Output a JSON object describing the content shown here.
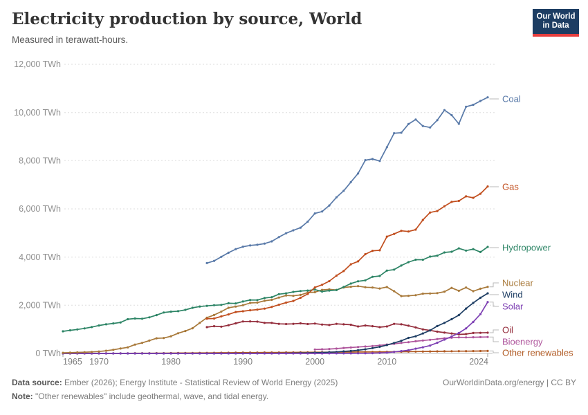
{
  "header": {
    "title": "Electricity production by source, World",
    "subtitle": "Measured in terawatt-hours.",
    "logo": {
      "line1": "Our World",
      "line2": "in Data"
    }
  },
  "footer": {
    "source_label": "Data source:",
    "source_text": "Ember (2026); Energy Institute - Statistical Review of World Energy (2025)",
    "note_label": "Note:",
    "note_text": "\"Other renewables\" include geothermal, wave, and tidal energy.",
    "attribution": "OurWorldinData.org/energy | CC BY"
  },
  "chart_data": {
    "type": "line",
    "title": "Electricity production by source, World",
    "subtitle": "Measured in terawatt-hours.",
    "unit": "TWh",
    "xlabel": "",
    "ylabel": "",
    "grid": true,
    "legend_position": "right-end-of-line",
    "x_range": [
      1965,
      2024
    ],
    "ylim": [
      0,
      12000
    ],
    "y_ticks": [
      0,
      2000,
      4000,
      6000,
      8000,
      10000,
      12000
    ],
    "y_tick_labels": [
      "0 TWh",
      "2,000 TWh",
      "4,000 TWh",
      "6,000 TWh",
      "8,000 TWh",
      "10,000 TWh",
      "12,000 TWh"
    ],
    "x_tick_years": [
      1965,
      1970,
      1980,
      1990,
      2000,
      2010,
      2024
    ],
    "x_tick_labels": [
      "1965",
      "1970",
      "1980",
      "1990",
      "2000",
      "2010",
      "2024"
    ],
    "series": [
      {
        "name": "Coal",
        "color": "#5879A8",
        "start_year": 1985,
        "values": [
          3750,
          3840,
          4010,
          4180,
          4330,
          4430,
          4480,
          4510,
          4560,
          4650,
          4830,
          4990,
          5110,
          5220,
          5470,
          5810,
          5890,
          6140,
          6480,
          6750,
          7110,
          7470,
          8020,
          8070,
          7990,
          8560,
          9140,
          9160,
          9520,
          9710,
          9440,
          9380,
          9680,
          10100,
          9890,
          9530,
          10240,
          10320,
          10480,
          10630
        ]
      },
      {
        "name": "Gas",
        "color": "#C14E1E",
        "start_year": 1985,
        "values": [
          1440,
          1450,
          1540,
          1620,
          1720,
          1750,
          1790,
          1820,
          1860,
          1930,
          2020,
          2110,
          2180,
          2310,
          2470,
          2740,
          2850,
          3000,
          3230,
          3420,
          3700,
          3820,
          4120,
          4260,
          4280,
          4850,
          4960,
          5090,
          5060,
          5140,
          5540,
          5850,
          5910,
          6110,
          6290,
          6330,
          6520,
          6460,
          6630,
          6930
        ]
      },
      {
        "name": "Hydropower",
        "color": "#2C8465",
        "start_year": 1965,
        "values": [
          920,
          960,
          995,
          1040,
          1095,
          1160,
          1210,
          1245,
          1285,
          1420,
          1450,
          1440,
          1500,
          1590,
          1700,
          1735,
          1755,
          1810,
          1895,
          1945,
          1975,
          2000,
          2015,
          2085,
          2075,
          2155,
          2220,
          2215,
          2300,
          2335,
          2460,
          2495,
          2555,
          2590,
          2610,
          2650,
          2570,
          2610,
          2630,
          2760,
          2900,
          2995,
          3035,
          3180,
          3215,
          3440,
          3480,
          3650,
          3790,
          3890,
          3890,
          4020,
          4060,
          4190,
          4220,
          4360,
          4270,
          4330,
          4210,
          4420
        ]
      },
      {
        "name": "Nuclear",
        "color": "#A8793A",
        "start_year": 1965,
        "values": [
          25,
          32,
          42,
          53,
          62,
          79,
          111,
          152,
          203,
          252,
          367,
          438,
          535,
          630,
          640,
          713,
          837,
          930,
          1045,
          1270,
          1483,
          1596,
          1737,
          1895,
          1945,
          2000,
          2096,
          2111,
          2185,
          2225,
          2320,
          2405,
          2390,
          2430,
          2530,
          2540,
          2637,
          2660,
          2635,
          2738,
          2768,
          2793,
          2748,
          2735,
          2697,
          2756,
          2584,
          2380,
          2390,
          2417,
          2480,
          2490,
          2503,
          2563,
          2721,
          2600,
          2737,
          2585,
          2686,
          2765
        ]
      },
      {
        "name": "Wind",
        "color": "#1D3D63",
        "start_year": 1965,
        "values": [
          0,
          0,
          0,
          0,
          0,
          0,
          0,
          0,
          0,
          0,
          0,
          0,
          0,
          0,
          0,
          0,
          0,
          0,
          0,
          0,
          1,
          1,
          1,
          2,
          3,
          4,
          4,
          5,
          6,
          7,
          8,
          9,
          12,
          16,
          21,
          31,
          38,
          52,
          63,
          85,
          104,
          133,
          171,
          221,
          276,
          346,
          437,
          526,
          646,
          712,
          831,
          957,
          1136,
          1269,
          1420,
          1590,
          1862,
          2098,
          2310,
          2494
        ]
      },
      {
        "name": "Solar",
        "color": "#7D3FB3",
        "start_year": 1965,
        "values": [
          0,
          0,
          0,
          0,
          0,
          0,
          0,
          0,
          0,
          0,
          0,
          0,
          0,
          0,
          0,
          0,
          0,
          0,
          0,
          0,
          0,
          0,
          0,
          0,
          0,
          0,
          0,
          0,
          0,
          0,
          0,
          0,
          0,
          0,
          0,
          1,
          1,
          2,
          2,
          3,
          4,
          5,
          7,
          12,
          20,
          32,
          63,
          97,
          132,
          197,
          256,
          328,
          444,
          574,
          704,
          846,
          1040,
          1310,
          1631,
          2132
        ]
      },
      {
        "name": "Oil",
        "color": "#942C3B",
        "start_year": 1985,
        "values": [
          1090,
          1130,
          1110,
          1170,
          1250,
          1325,
          1330,
          1320,
          1270,
          1270,
          1230,
          1220,
          1230,
          1250,
          1220,
          1240,
          1200,
          1180,
          1230,
          1210,
          1190,
          1120,
          1160,
          1130,
          1090,
          1120,
          1230,
          1210,
          1150,
          1080,
          1000,
          955,
          905,
          865,
          830,
          790,
          805,
          850,
          855,
          860
        ]
      },
      {
        "name": "Bioenergy",
        "color": "#AE549B",
        "start_year": 2000,
        "values": [
          164,
          172,
          185,
          200,
          227,
          248,
          268,
          288,
          308,
          335,
          370,
          400,
          435,
          468,
          505,
          536,
          565,
          598,
          628,
          652,
          668,
          665,
          672,
          678,
          684
        ]
      },
      {
        "name": "Other renewables",
        "color": "#B05A23",
        "start_year": 1965,
        "values": [
          3,
          3,
          3,
          4,
          4,
          5,
          5,
          6,
          6,
          7,
          8,
          9,
          10,
          11,
          12,
          14,
          16,
          18,
          20,
          22,
          24,
          26,
          28,
          30,
          33,
          36,
          37,
          38,
          39,
          40,
          40,
          42,
          44,
          46,
          49,
          52,
          52,
          53,
          54,
          56,
          58,
          59,
          61,
          63,
          65,
          68,
          70,
          72,
          74,
          77,
          80,
          83,
          86,
          89,
          92,
          95,
          96,
          97,
          100,
          103
        ]
      }
    ]
  }
}
